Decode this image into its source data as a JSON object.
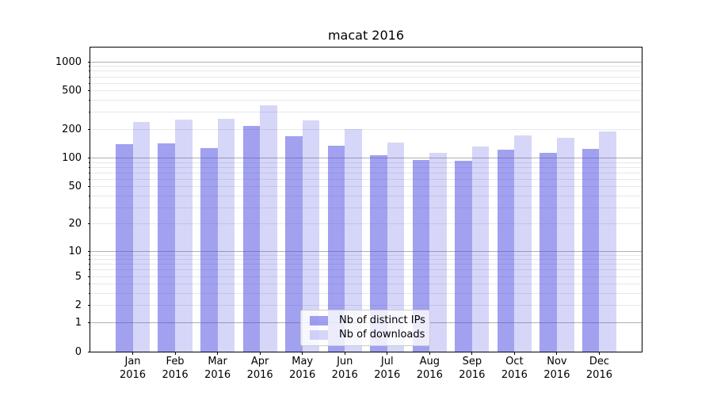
{
  "chart_data": {
    "type": "bar",
    "title": "macat 2016",
    "categories": [
      {
        "month": "Jan",
        "year": "2016"
      },
      {
        "month": "Feb",
        "year": "2016"
      },
      {
        "month": "Mar",
        "year": "2016"
      },
      {
        "month": "Apr",
        "year": "2016"
      },
      {
        "month": "May",
        "year": "2016"
      },
      {
        "month": "Jun",
        "year": "2016"
      },
      {
        "month": "Jul",
        "year": "2016"
      },
      {
        "month": "Aug",
        "year": "2016"
      },
      {
        "month": "Sep",
        "year": "2016"
      },
      {
        "month": "Oct",
        "year": "2016"
      },
      {
        "month": "Nov",
        "year": "2016"
      },
      {
        "month": "Dec",
        "year": "2016"
      }
    ],
    "series": [
      {
        "name": "Nb of distinct IPs",
        "fill": "rgba(68,68,226,0.5)",
        "solid_hex": "#a1a1f0",
        "values": [
          140,
          143,
          126,
          215,
          170,
          134,
          107,
          96,
          93,
          122,
          113,
          125
        ]
      },
      {
        "name": "Nb of downloads",
        "fill": "rgba(68,68,226,0.22)",
        "solid_hex": "#d9d9f8",
        "values": [
          238,
          253,
          257,
          352,
          246,
          201,
          144,
          114,
          131,
          172,
          162,
          188
        ]
      }
    ],
    "yscale": "log1p",
    "ylim": [
      0,
      1410
    ],
    "yticks": [
      0,
      1,
      2,
      5,
      10,
      20,
      50,
      100,
      200,
      500,
      1000
    ],
    "ytick_labels": [
      "0",
      "1",
      "2",
      "5",
      "10",
      "20",
      "50",
      "100",
      "200",
      "500",
      "1000"
    ],
    "major_grid_values": [
      1,
      10,
      100,
      1000
    ],
    "minor_grid_values": [
      2,
      3,
      4,
      5,
      6,
      7,
      8,
      9,
      20,
      30,
      40,
      50,
      60,
      70,
      80,
      90,
      200,
      300,
      400,
      500,
      600,
      700,
      800,
      900
    ],
    "grid": "on",
    "legend_position": "lower-center",
    "colors": {
      "major_grid": "#b0b0b0",
      "minor_grid": "#e7e7ee",
      "axis": "#000000",
      "text": "#000000",
      "background": "#ffffff"
    }
  }
}
